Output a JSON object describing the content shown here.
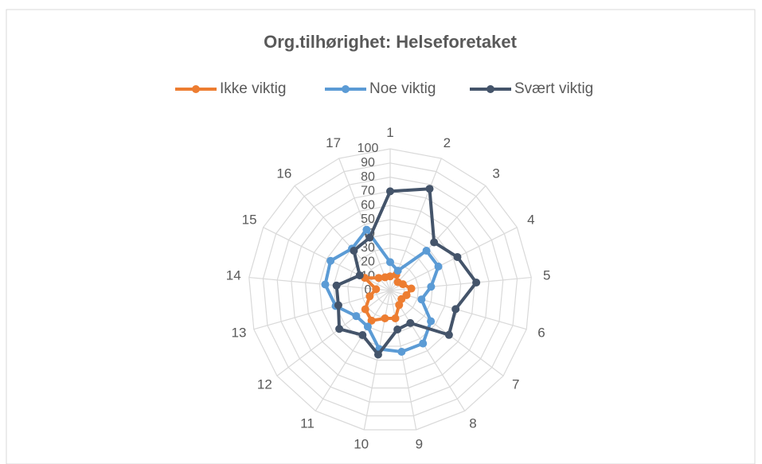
{
  "chart_data": {
    "type": "radar",
    "title": "Org.tilhørighet: Helseforetaket",
    "categories": [
      "1",
      "2",
      "3",
      "4",
      "5",
      "6",
      "7",
      "8",
      "9",
      "10",
      "11",
      "12",
      "13",
      "14",
      "15",
      "16",
      "17"
    ],
    "series": [
      {
        "name": "Ikke viktig",
        "color": "#ed7d31",
        "values": [
          10,
          12,
          8,
          10,
          15,
          12,
          10,
          12,
          20,
          20,
          25,
          22,
          15,
          10,
          20,
          12,
          10
        ]
      },
      {
        "name": "Noe viktig",
        "color": "#5b9bd5",
        "values": [
          20,
          15,
          38,
          38,
          29,
          23,
          36,
          44,
          44,
          42,
          30,
          30,
          40,
          46,
          47,
          40,
          46
        ]
      },
      {
        "name": "Svært viktig",
        "color": "#44546a",
        "values": [
          70,
          77,
          46,
          53,
          61,
          48,
          52,
          27,
          28,
          46,
          37,
          45,
          38,
          38,
          24,
          38,
          40
        ]
      }
    ],
    "ylim": [
      0,
      100
    ],
    "yticks": [
      0,
      10,
      20,
      30,
      40,
      50,
      60,
      70,
      80,
      90,
      100
    ],
    "grid": true,
    "legend": "top"
  }
}
